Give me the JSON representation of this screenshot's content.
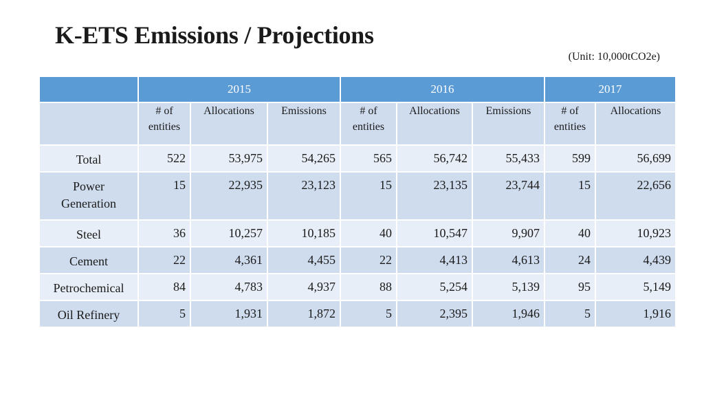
{
  "title": "K-ETS Emissions / Projections",
  "unit": "(Unit: 10,000tCO2e)",
  "years": [
    "2015",
    "2016",
    "2017"
  ],
  "subheaders": [
    "# of entities",
    "Allocations",
    "Emissions",
    "# of entities",
    "Allocations",
    "Emissions",
    "# of entities",
    "Allocations"
  ],
  "rows": [
    {
      "label": "Total",
      "cells": [
        "522",
        "53,975",
        "54,265",
        "565",
        "56,742",
        "55,433",
        "599",
        "56,699"
      ]
    },
    {
      "label": "Power Generation",
      "cells": [
        "15",
        "22,935",
        "23,123",
        "15",
        "23,135",
        "23,744",
        "15",
        "22,656"
      ]
    },
    {
      "label": "Steel",
      "cells": [
        "36",
        "10,257",
        "10,185",
        "40",
        "10,547",
        "9,907",
        "40",
        "10,923"
      ]
    },
    {
      "label": "Cement",
      "cells": [
        "22",
        "4,361",
        "4,455",
        "22",
        "4,413",
        "4,613",
        "24",
        "4,439"
      ]
    },
    {
      "label": "Petrochemical",
      "cells": [
        "84",
        "4,783",
        "4,937",
        "88",
        "5,254",
        "5,139",
        "95",
        "5,149"
      ]
    },
    {
      "label": "Oil Refinery",
      "cells": [
        "5",
        "1,931",
        "1,872",
        "5",
        "2,395",
        "1,946",
        "5",
        "1,916"
      ]
    }
  ]
}
